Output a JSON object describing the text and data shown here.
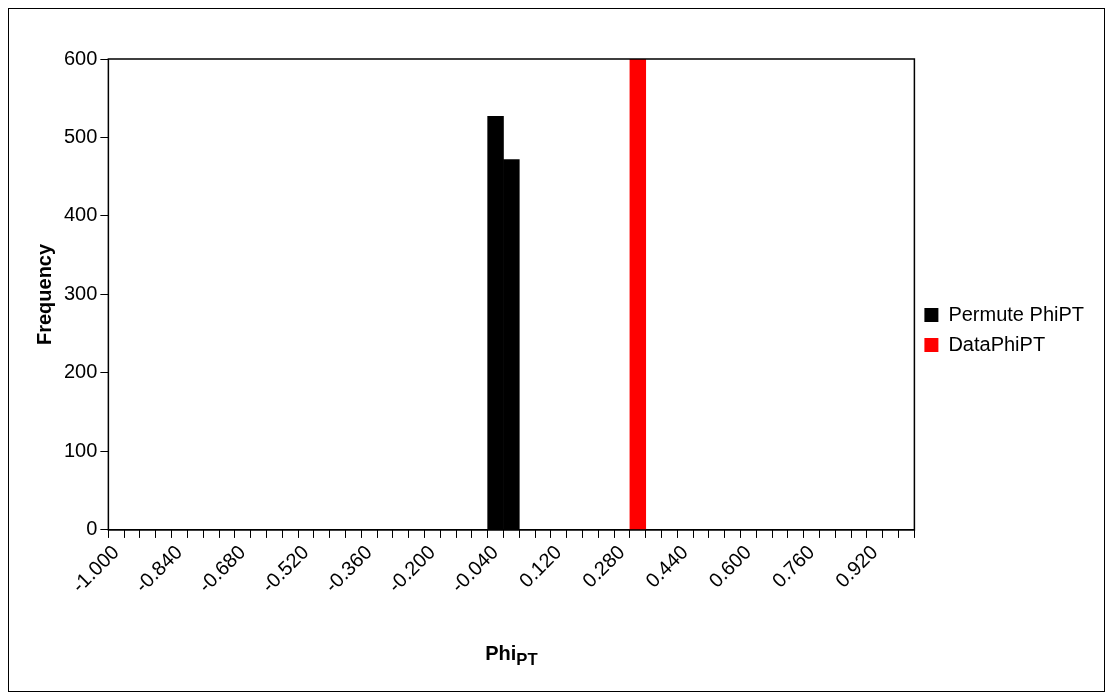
{
  "chart_data": {
    "type": "bar",
    "xlabel": "Phi$_{PT}$",
    "ylabel": "Frequency",
    "categories": [
      "-1.000",
      null,
      null,
      null,
      "-0.840",
      null,
      null,
      null,
      "-0.680",
      null,
      null,
      null,
      "-0.520",
      null,
      null,
      null,
      "-0.360",
      null,
      null,
      null,
      "-0.200",
      null,
      null,
      null,
      "-0.040",
      null,
      null,
      null,
      "0.120",
      null,
      null,
      null,
      "0.280",
      null,
      null,
      null,
      "0.440",
      null,
      null,
      null,
      "0.600",
      null,
      null,
      null,
      "0.760",
      null,
      null,
      null,
      "0.920",
      null,
      null
    ],
    "series": [
      {
        "name": "Permute PhiPT",
        "color": "#000000",
        "values": [
          null,
          null,
          null,
          null,
          null,
          null,
          null,
          null,
          null,
          null,
          null,
          null,
          null,
          null,
          null,
          null,
          null,
          null,
          null,
          null,
          null,
          null,
          null,
          null,
          527,
          472,
          null,
          null,
          null,
          null,
          null,
          null,
          null,
          null,
          null,
          null,
          null,
          null,
          null,
          null,
          null,
          null,
          null,
          null,
          null,
          null,
          null,
          null,
          null,
          null,
          null
        ]
      },
      {
        "name": "DataPhiPT",
        "color": "#ff0000",
        "values": [
          null,
          null,
          null,
          null,
          null,
          null,
          null,
          null,
          null,
          null,
          null,
          null,
          null,
          null,
          null,
          null,
          null,
          null,
          null,
          null,
          null,
          null,
          null,
          null,
          null,
          null,
          null,
          null,
          null,
          null,
          null,
          null,
          null,
          600,
          null,
          null,
          null,
          null,
          null,
          null,
          null,
          null,
          null,
          null,
          null,
          null,
          null,
          null,
          null,
          null,
          null
        ]
      }
    ],
    "ylim": [
      0,
      600
    ],
    "yticks": [
      0,
      100,
      200,
      300,
      400,
      500,
      600
    ],
    "legend": "right"
  }
}
